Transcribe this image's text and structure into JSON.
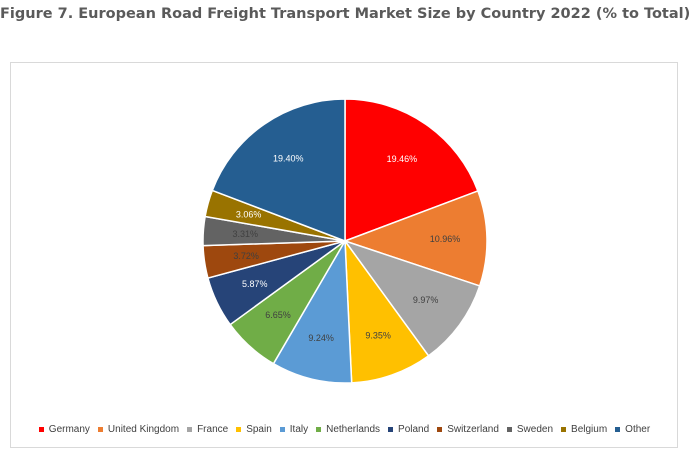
{
  "title": "Figure 7. European Road Freight Transport Market Size by Country 2022 (% to Total)",
  "chart_data": {
    "type": "pie",
    "legend_position": "bottom",
    "slices": [
      {
        "name": "Germany",
        "value": 19.46,
        "label": "19.46%",
        "color": "#ff0000",
        "label_color": "#ffffff"
      },
      {
        "name": "United Kingdom",
        "value": 10.96,
        "label": "10.96%",
        "color": "#ed7d31",
        "label_color": "#404040"
      },
      {
        "name": "France",
        "value": 9.97,
        "label": "9.97%",
        "color": "#a5a5a5",
        "label_color": "#404040"
      },
      {
        "name": "Spain",
        "value": 9.35,
        "label": "9.35%",
        "color": "#ffc000",
        "label_color": "#404040"
      },
      {
        "name": "Italy",
        "value": 9.24,
        "label": "9.24%",
        "color": "#5b9bd5",
        "label_color": "#404040"
      },
      {
        "name": "Netherlands",
        "value": 6.65,
        "label": "6.65%",
        "color": "#70ad47",
        "label_color": "#404040"
      },
      {
        "name": "Poland",
        "value": 5.87,
        "label": "5.87%",
        "color": "#264478",
        "label_color": "#ffffff"
      },
      {
        "name": "Switzerland",
        "value": 3.72,
        "label": "3.72%",
        "color": "#9e480e",
        "label_color": "#404040"
      },
      {
        "name": "Sweden",
        "value": 3.31,
        "label": "3.31%",
        "color": "#636363",
        "label_color": "#404040"
      },
      {
        "name": "Belgium",
        "value": 3.06,
        "label": "3.06%",
        "color": "#997300",
        "label_color": "#ffffff"
      },
      {
        "name": "Other",
        "value": 19.4,
        "label": "19.40%",
        "color": "#255e91",
        "label_color": "#ffffff"
      }
    ]
  }
}
